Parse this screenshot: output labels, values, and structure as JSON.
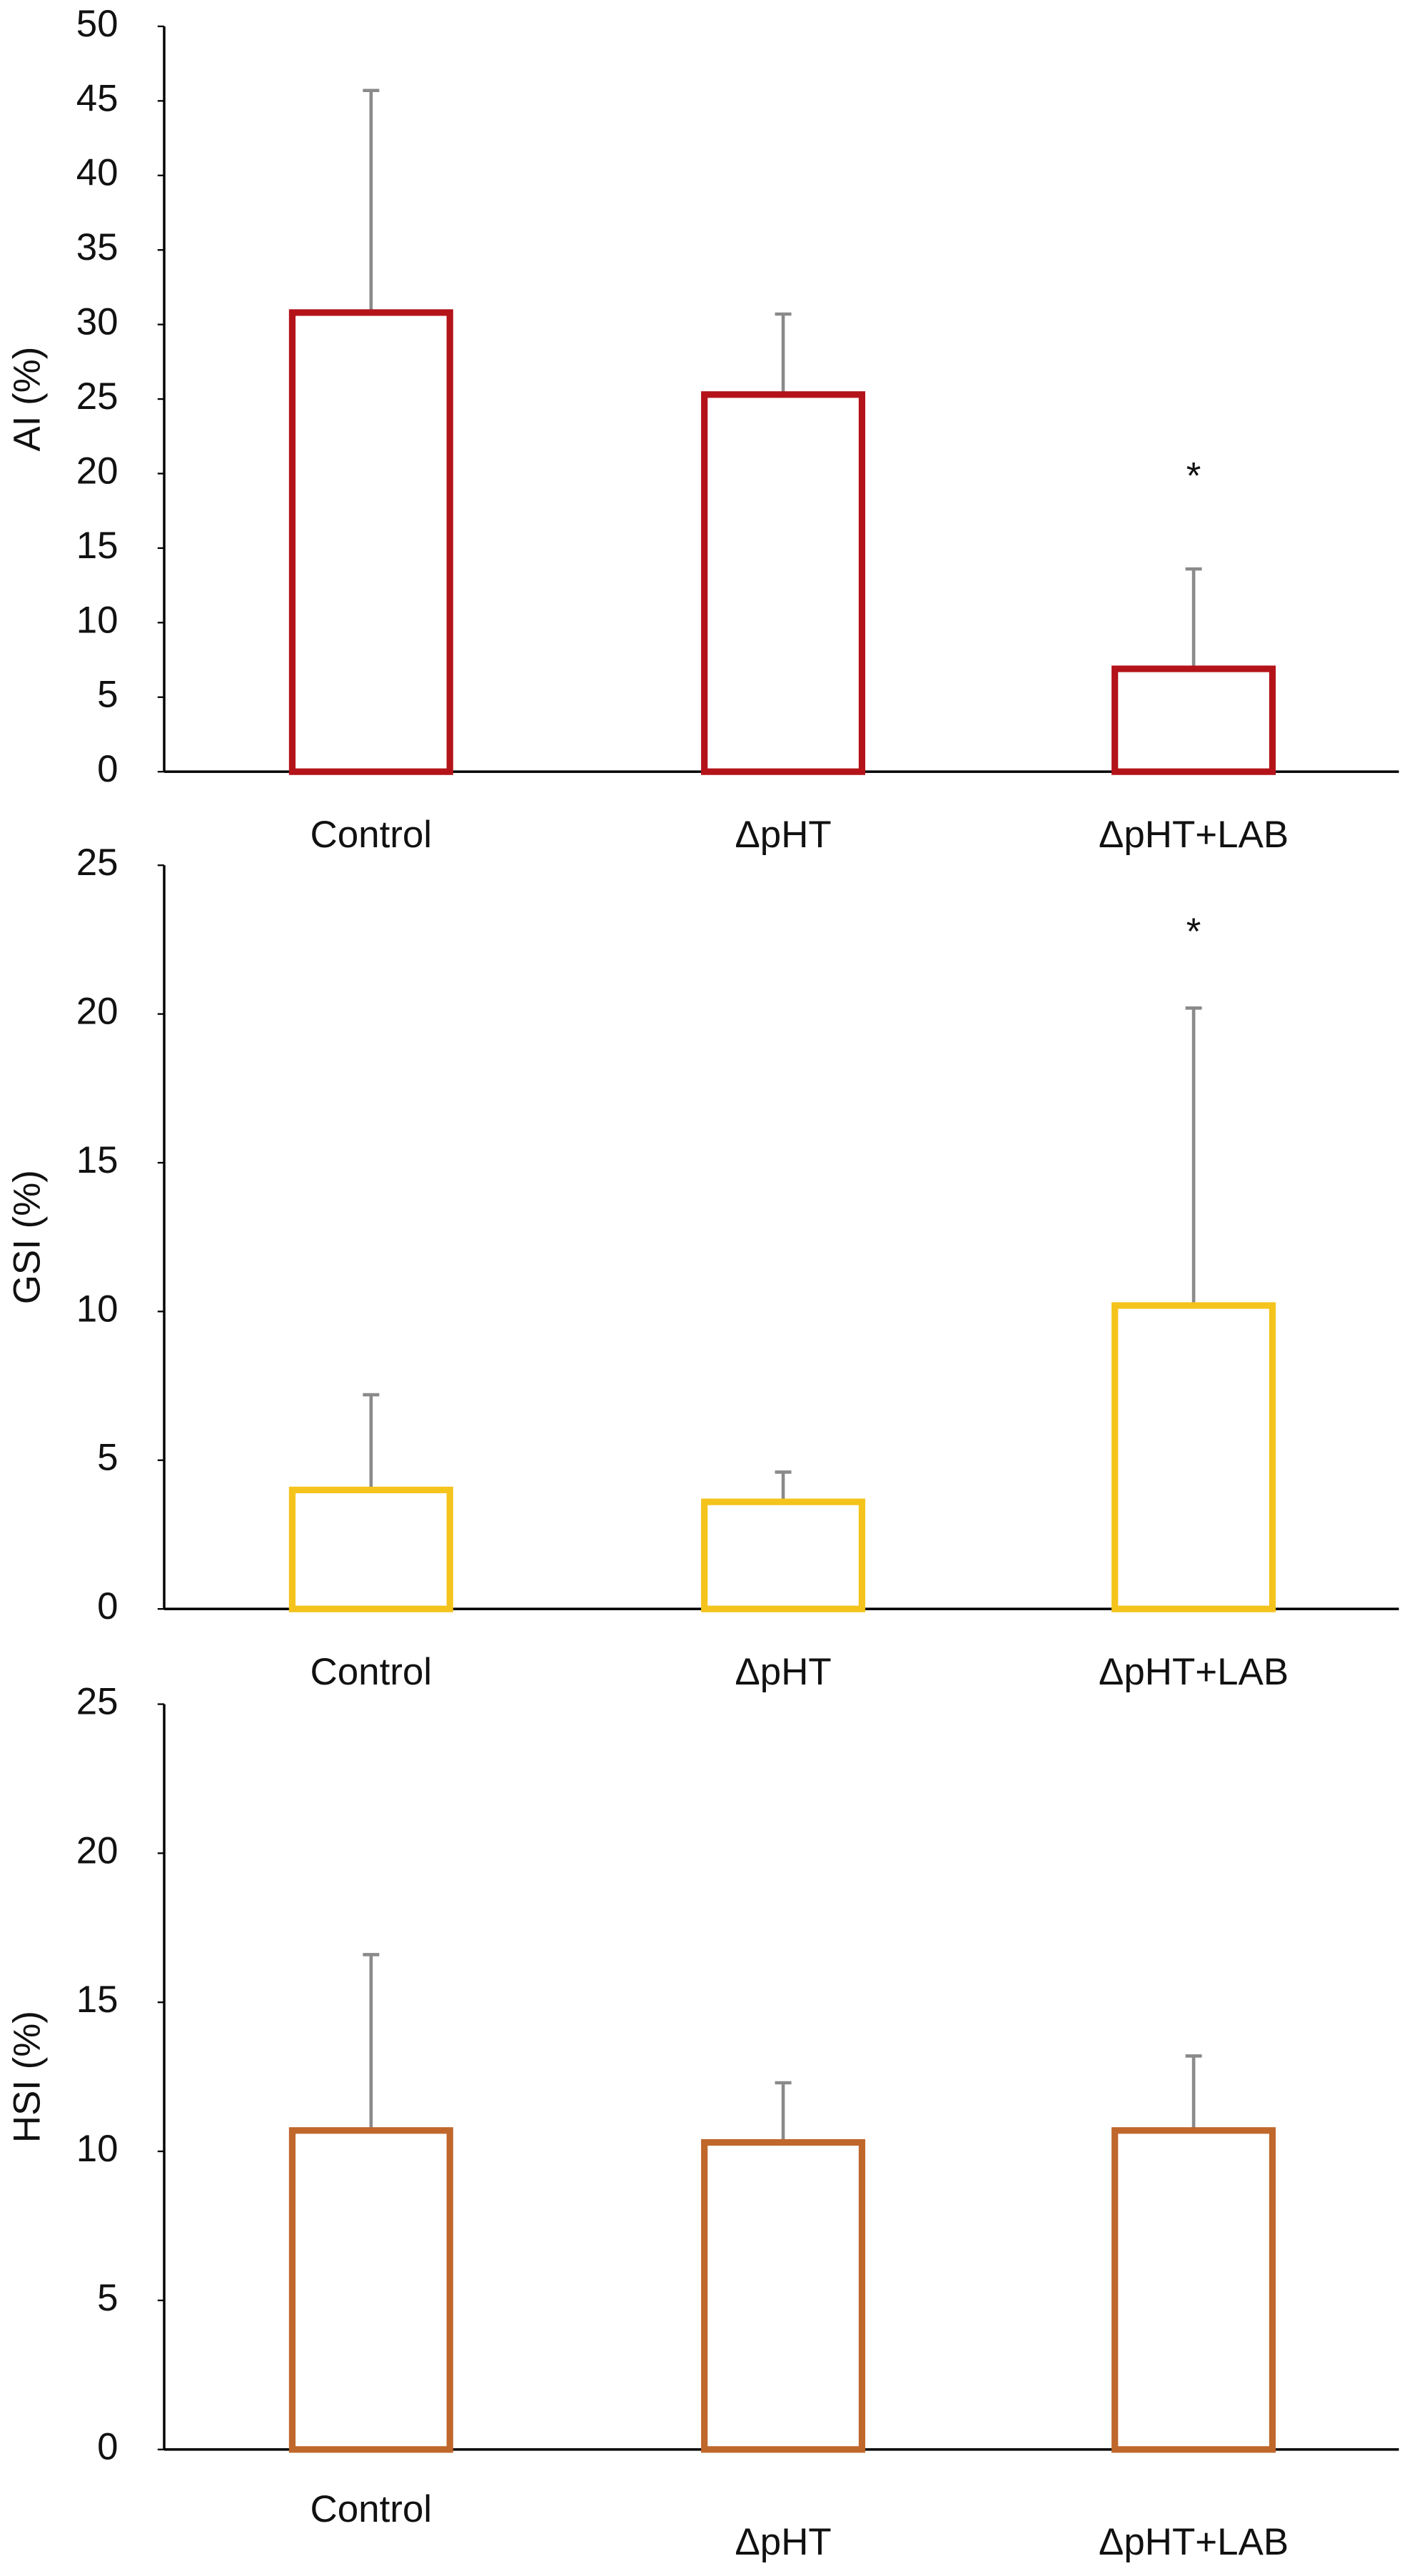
{
  "chart_data": [
    {
      "type": "bar",
      "y_label": "AI (%)",
      "categories": [
        "Control",
        "ΔpHT",
        "ΔpHT+LAB"
      ],
      "values": [
        30.8,
        25.3,
        6.9
      ],
      "errors": [
        14.9,
        5.4,
        6.7
      ],
      "color": "#b31319",
      "ylim": [
        0,
        50
      ],
      "yticks": [
        0,
        5,
        10,
        15,
        20,
        25,
        30,
        35,
        40,
        45,
        50
      ],
      "annotations": [
        {
          "text": "*",
          "category": "ΔpHT+LAB"
        }
      ]
    },
    {
      "type": "bar",
      "y_label": "GSI (%)",
      "categories": [
        "Control",
        "ΔpHT",
        "ΔpHT+LAB"
      ],
      "values": [
        4.0,
        3.6,
        10.2
      ],
      "errors": [
        3.2,
        1.0,
        10.0
      ],
      "color": "#f4c31c",
      "ylim": [
        0,
        25
      ],
      "yticks": [
        0,
        5,
        10,
        15,
        20,
        25
      ],
      "annotations": [
        {
          "text": "*",
          "category": "ΔpHT+LAB"
        }
      ]
    },
    {
      "type": "bar",
      "y_label": "HSI (%)",
      "categories": [
        "Control",
        "ΔpHT",
        "ΔpHT+LAB"
      ],
      "values": [
        10.7,
        10.3,
        10.7
      ],
      "errors": [
        5.9,
        2.0,
        2.5
      ],
      "color": "#c0672c",
      "ylim": [
        0,
        25
      ],
      "yticks": [
        0,
        5,
        10,
        15,
        20,
        25
      ]
    }
  ]
}
